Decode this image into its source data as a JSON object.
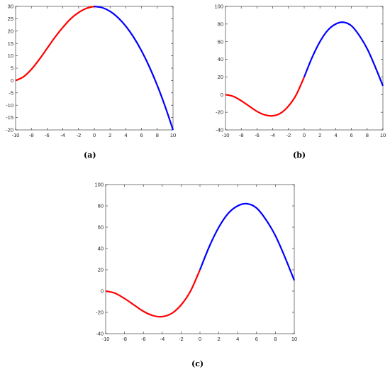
{
  "captions": {
    "a": "(a)",
    "b": "(b)",
    "c": "(c)"
  },
  "colors": {
    "negative_x": "#ff0000",
    "positive_x": "#0000ff",
    "axes": "#262626"
  },
  "chart_data": [
    {
      "id": "a",
      "type": "line",
      "title": "",
      "xlabel": "",
      "ylabel": "",
      "xlim": [
        -10,
        10
      ],
      "ylim": [
        -20,
        30
      ],
      "grid": false,
      "xticks": [
        -10,
        -8,
        -6,
        -4,
        -2,
        0,
        2,
        4,
        6,
        8,
        10
      ],
      "yticks": [
        -20,
        -15,
        -10,
        -5,
        0,
        5,
        10,
        15,
        20,
        25,
        30
      ],
      "series": [
        {
          "color": "#ff0000",
          "x": [
            -10,
            -9,
            -8,
            -7,
            -6,
            -5,
            -4,
            -3,
            -2,
            -1,
            0
          ],
          "y": [
            0,
            1.5,
            4.5,
            8.5,
            13,
            17.5,
            21.5,
            25,
            27.5,
            29.2,
            30
          ]
        },
        {
          "color": "#0000ff",
          "x": [
            0,
            1,
            2,
            3,
            4,
            5,
            6,
            7,
            8,
            9,
            10
          ],
          "y": [
            30,
            29.5,
            28,
            25.5,
            22,
            17.5,
            12,
            5.5,
            -2,
            -10.5,
            -20
          ]
        }
      ]
    },
    {
      "id": "b",
      "type": "line",
      "title": "",
      "xlabel": "",
      "ylabel": "",
      "xlim": [
        -10,
        10
      ],
      "ylim": [
        -40,
        100
      ],
      "grid": false,
      "xticks": [
        -10,
        -8,
        -6,
        -4,
        -2,
        0,
        2,
        4,
        6,
        8,
        10
      ],
      "yticks": [
        -40,
        -20,
        0,
        20,
        40,
        60,
        80,
        100
      ],
      "series": [
        {
          "color": "#ff0000",
          "x": [
            -10,
            -9,
            -8,
            -7,
            -6,
            -5,
            -4,
            -3,
            -2,
            -1,
            0
          ],
          "y": [
            0,
            -2,
            -7,
            -13,
            -19,
            -23,
            -24,
            -21,
            -13,
            0,
            20
          ]
        },
        {
          "color": "#0000ff",
          "x": [
            0,
            1,
            2,
            3,
            4,
            5,
            6,
            7,
            8,
            9,
            10
          ],
          "y": [
            20,
            42,
            60,
            73,
            80,
            82,
            78,
            67,
            52,
            32,
            10
          ]
        }
      ]
    },
    {
      "id": "c",
      "type": "line",
      "title": "",
      "xlabel": "",
      "ylabel": "",
      "xlim": [
        -10,
        10
      ],
      "ylim": [
        -40,
        100
      ],
      "grid": false,
      "xticks": [
        -10,
        -8,
        -6,
        -4,
        -2,
        0,
        2,
        4,
        6,
        8,
        10
      ],
      "yticks": [
        -40,
        -20,
        0,
        20,
        40,
        60,
        80,
        100
      ],
      "series": [
        {
          "color": "#ff0000",
          "x": [
            -10,
            -9,
            -8,
            -7,
            -6,
            -5,
            -4,
            -3,
            -2,
            -1,
            0
          ],
          "y": [
            0,
            -2,
            -7,
            -13,
            -19,
            -23,
            -24,
            -21,
            -13,
            0,
            20
          ]
        },
        {
          "color": "#0000ff",
          "x": [
            0,
            1,
            2,
            3,
            4,
            5,
            6,
            7,
            8,
            9,
            10
          ],
          "y": [
            20,
            42,
            60,
            73,
            80,
            82,
            78,
            67,
            52,
            32,
            10
          ]
        }
      ]
    }
  ]
}
